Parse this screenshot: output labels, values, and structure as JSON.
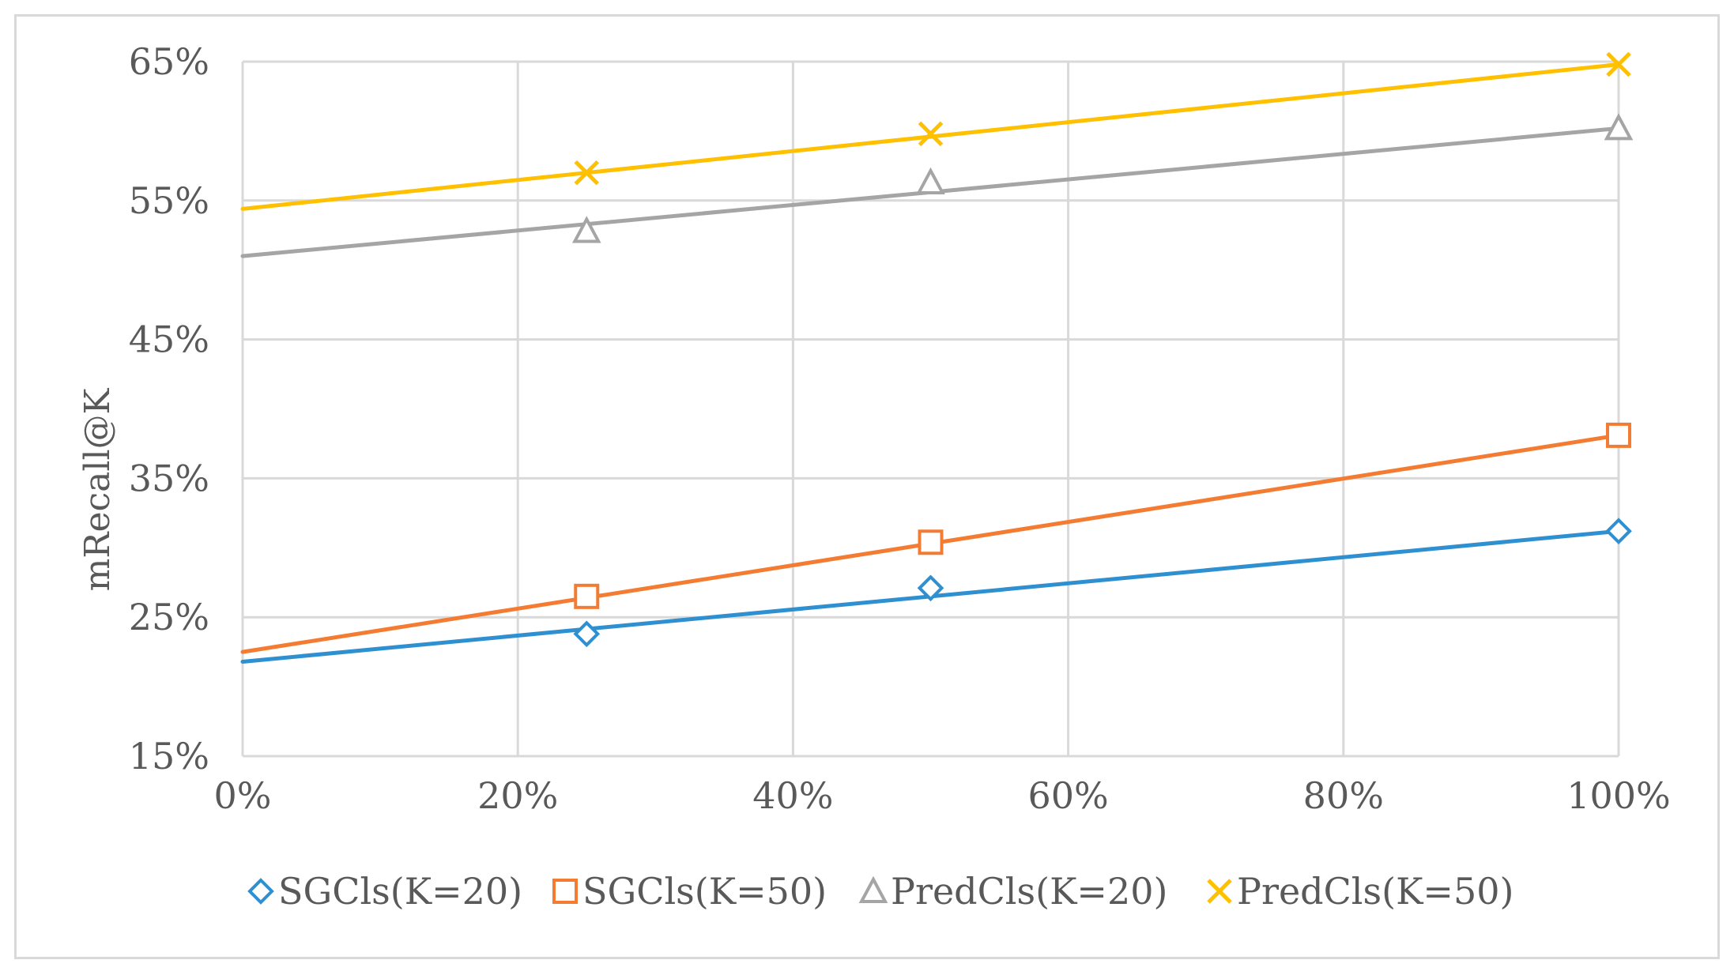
{
  "chart_data": {
    "type": "line",
    "title": "",
    "xlabel": "",
    "ylabel": "mRecall@K",
    "xlim": [
      0,
      100
    ],
    "ylim": [
      15,
      65
    ],
    "x_ticks": [
      {
        "value": 0,
        "label": "0%"
      },
      {
        "value": 20,
        "label": "20%"
      },
      {
        "value": 40,
        "label": "40%"
      },
      {
        "value": 60,
        "label": "60%"
      },
      {
        "value": 80,
        "label": "80%"
      },
      {
        "value": 100,
        "label": "100%"
      }
    ],
    "y_ticks": [
      {
        "value": 15,
        "label": "15%"
      },
      {
        "value": 25,
        "label": "25%"
      },
      {
        "value": 35,
        "label": "35%"
      },
      {
        "value": 45,
        "label": "45%"
      },
      {
        "value": 55,
        "label": "55%"
      },
      {
        "value": 65,
        "label": "65%"
      }
    ],
    "grid": true,
    "legend_position": "bottom",
    "series": [
      {
        "name": "SGCls(K=20)",
        "color": "#2e8fd1",
        "marker": "diamond",
        "x": [
          25,
          50,
          100
        ],
        "values": [
          23.8,
          27.1,
          31.2
        ],
        "trend": [
          21.8,
          31.2
        ]
      },
      {
        "name": "SGCls(K=50)",
        "color": "#f47c32",
        "marker": "square",
        "x": [
          25,
          50,
          100
        ],
        "values": [
          26.5,
          30.4,
          38.1
        ],
        "trend": [
          22.5,
          38.1
        ]
      },
      {
        "name": "PredCls(K=20)",
        "color": "#a5a5a5",
        "marker": "triangle",
        "x": [
          25,
          50,
          100
        ],
        "values": [
          52.8,
          56.3,
          60.2
        ],
        "trend": [
          51.0,
          60.2
        ]
      },
      {
        "name": "PredCls(K=50)",
        "color": "#ffc000",
        "marker": "x",
        "x": [
          25,
          50,
          100
        ],
        "values": [
          57.0,
          59.8,
          64.8
        ],
        "trend": [
          54.4,
          64.8
        ]
      }
    ]
  }
}
